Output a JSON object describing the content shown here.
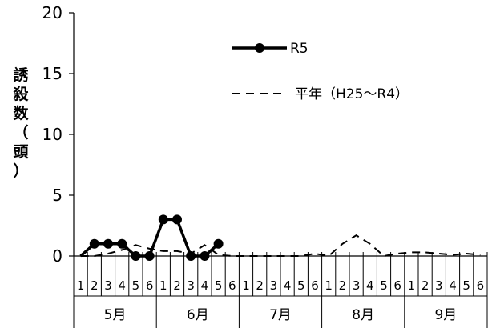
{
  "chart_data": {
    "type": "line",
    "title": "",
    "xlabel": "",
    "ylabel": "誘殺数（頭）",
    "ylim": [
      0,
      20
    ],
    "yticks": [
      "0",
      "5",
      "10",
      "15",
      "20"
    ],
    "grid": false,
    "legend_position": "top-center",
    "months": [
      "5月",
      "6月",
      "7月",
      "8月",
      "9月"
    ],
    "periods_per_month": [
      "1",
      "2",
      "3",
      "4",
      "5",
      "6"
    ],
    "series": [
      {
        "name": "R5",
        "style": "solid-marker",
        "color": "#000000",
        "values": [
          0,
          1,
          1,
          1,
          0,
          0,
          3,
          3,
          0,
          0,
          1,
          null,
          null,
          null,
          null,
          null,
          null,
          null,
          null,
          null,
          null,
          null,
          null,
          null,
          null,
          null,
          null,
          null,
          null,
          null
        ]
      },
      {
        "name": "平年（H25～R4）",
        "style": "dashed",
        "color": "#000000",
        "values": [
          0,
          0,
          0.2,
          0.5,
          0.9,
          0.6,
          0.4,
          0.4,
          0.2,
          0.9,
          0.1,
          0,
          0,
          0,
          0,
          0,
          0,
          0.2,
          0,
          1.0,
          1.7,
          1.0,
          0,
          0.2,
          0.3,
          0.3,
          0.2,
          0.1,
          0.2,
          0.1
        ]
      }
    ]
  }
}
